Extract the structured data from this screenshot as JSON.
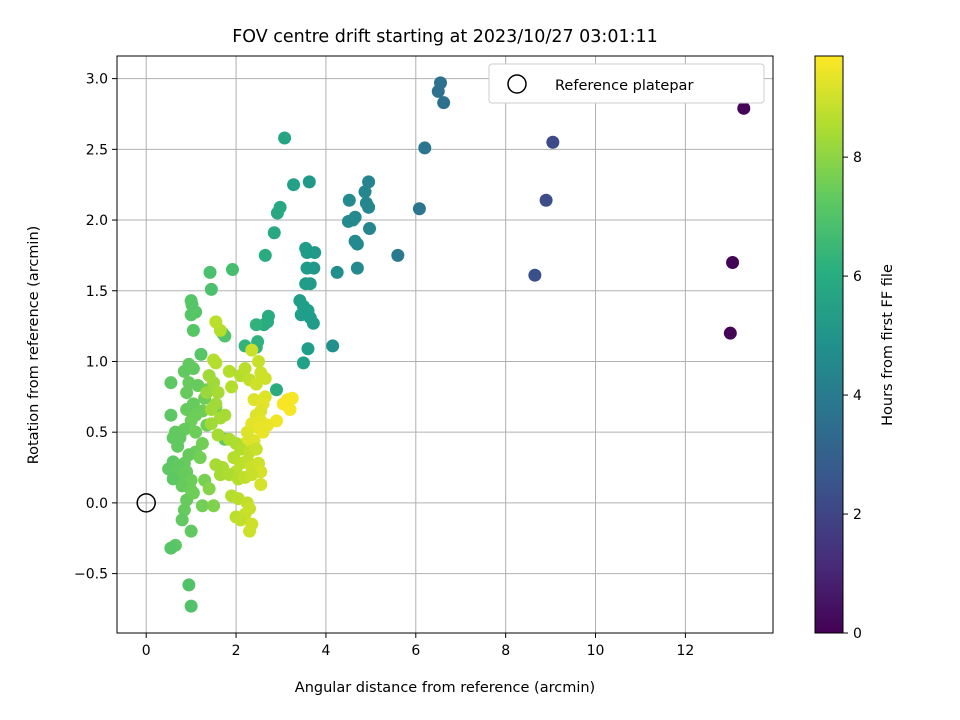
{
  "chart_data": {
    "type": "scatter",
    "title": "FOV centre drift starting at 2023/10/27 03:01:11",
    "xlabel": "Angular distance from reference (arcmin)",
    "ylabel": "Rotation from reference (arcmin)",
    "xlim": [
      -0.65,
      13.95
    ],
    "ylim": [
      -0.92,
      3.16
    ],
    "xticks": [
      0,
      2,
      4,
      6,
      8,
      10,
      12
    ],
    "yticks": [
      -0.5,
      0.0,
      0.5,
      1.0,
      1.5,
      2.0,
      2.5,
      3.0
    ],
    "xtick_labels": [
      "0",
      "2",
      "4",
      "6",
      "8",
      "10",
      "12"
    ],
    "ytick_labels": [
      "−0.5",
      "0.0",
      "0.5",
      "1.0",
      "1.5",
      "2.0",
      "2.5",
      "3.0"
    ],
    "grid": true,
    "legend": {
      "location": "upper right",
      "label": "Reference platepar"
    },
    "reference_point": {
      "x": 0,
      "y": 0
    },
    "colorbar": {
      "label": "Hours from first FF file",
      "range": [
        0,
        9.7
      ],
      "ticks": [
        0,
        2,
        4,
        6,
        8
      ],
      "tick_labels": [
        "0",
        "2",
        "4",
        "6",
        "8"
      ],
      "colormap": "viridis"
    },
    "points": [
      [
        13.3,
        2.79,
        0.1
      ],
      [
        13.05,
        1.7,
        0.1
      ],
      [
        13.0,
        1.2,
        0.1
      ],
      [
        8.65,
        1.61,
        2.4
      ],
      [
        8.9,
        2.14,
        2.3
      ],
      [
        9.05,
        2.55,
        2.2
      ],
      [
        6.55,
        2.97,
        3.6
      ],
      [
        6.5,
        2.91,
        3.6
      ],
      [
        6.62,
        2.83,
        3.6
      ],
      [
        6.2,
        2.51,
        3.8
      ],
      [
        6.08,
        2.08,
        3.8
      ],
      [
        5.6,
        1.75,
        4.0
      ],
      [
        4.95,
        2.27,
        4.4
      ],
      [
        4.87,
        2.2,
        4.5
      ],
      [
        4.9,
        2.12,
        4.5
      ],
      [
        4.95,
        2.09,
        4.5
      ],
      [
        4.52,
        2.14,
        4.6
      ],
      [
        4.6,
        2.0,
        4.6
      ],
      [
        4.65,
        2.02,
        4.6
      ],
      [
        4.5,
        1.99,
        4.6
      ],
      [
        4.97,
        1.94,
        4.5
      ],
      [
        4.65,
        1.85,
        4.6
      ],
      [
        4.7,
        1.83,
        4.6
      ],
      [
        4.7,
        1.66,
        4.6
      ],
      [
        4.25,
        1.63,
        4.8
      ],
      [
        4.15,
        1.11,
        4.9
      ],
      [
        3.63,
        2.27,
        5.2
      ],
      [
        3.28,
        2.25,
        5.5
      ],
      [
        3.08,
        2.58,
        5.7
      ],
      [
        2.98,
        2.09,
        5.8
      ],
      [
        2.92,
        2.05,
        5.8
      ],
      [
        2.85,
        1.91,
        5.8
      ],
      [
        3.55,
        1.8,
        5.3
      ],
      [
        3.58,
        1.77,
        5.3
      ],
      [
        3.75,
        1.77,
        5.2
      ],
      [
        3.58,
        1.66,
        5.3
      ],
      [
        3.73,
        1.66,
        5.2
      ],
      [
        3.55,
        1.55,
        5.3
      ],
      [
        3.65,
        1.55,
        5.3
      ],
      [
        3.42,
        1.43,
        5.4
      ],
      [
        3.5,
        1.39,
        5.4
      ],
      [
        3.6,
        1.36,
        5.4
      ],
      [
        3.45,
        1.33,
        5.4
      ],
      [
        3.65,
        1.31,
        5.4
      ],
      [
        3.72,
        1.27,
        5.3
      ],
      [
        3.6,
        1.09,
        5.4
      ],
      [
        3.5,
        0.99,
        5.5
      ],
      [
        2.65,
        1.75,
        6.0
      ],
      [
        2.72,
        1.32,
        6.0
      ],
      [
        2.7,
        1.28,
        6.0
      ],
      [
        2.62,
        1.26,
        6.0
      ],
      [
        2.45,
        1.26,
        6.2
      ],
      [
        2.48,
        1.14,
        6.2
      ],
      [
        2.2,
        1.11,
        6.3
      ],
      [
        2.45,
        1.1,
        6.2
      ],
      [
        2.9,
        0.8,
        6.0
      ],
      [
        1.92,
        1.65,
        6.8
      ],
      [
        1.42,
        1.63,
        6.9
      ],
      [
        1.45,
        1.51,
        6.9
      ],
      [
        1.0,
        1.43,
        7.1
      ],
      [
        1.02,
        1.4,
        7.1
      ],
      [
        1.1,
        1.35,
        7.1
      ],
      [
        1.0,
        1.33,
        7.1
      ],
      [
        1.05,
        1.22,
        7.1
      ],
      [
        1.7,
        1.2,
        7.0
      ],
      [
        1.75,
        1.18,
        7.0
      ],
      [
        1.22,
        1.05,
        7.1
      ],
      [
        0.95,
        0.98,
        7.3
      ],
      [
        1.05,
        0.95,
        7.3
      ],
      [
        0.85,
        0.93,
        7.3
      ],
      [
        0.55,
        0.85,
        7.2
      ],
      [
        0.95,
        0.85,
        7.4
      ],
      [
        1.15,
        0.83,
        7.4
      ],
      [
        1.35,
        0.8,
        7.5
      ],
      [
        0.9,
        0.78,
        7.4
      ],
      [
        1.3,
        0.74,
        7.5
      ],
      [
        1.05,
        0.7,
        7.4
      ],
      [
        1.55,
        0.68,
        7.5
      ],
      [
        0.9,
        0.66,
        7.4
      ],
      [
        1.25,
        0.65,
        7.5
      ],
      [
        1.1,
        0.62,
        7.5
      ],
      [
        0.55,
        0.62,
        7.2
      ],
      [
        1.0,
        0.58,
        7.5
      ],
      [
        1.35,
        0.55,
        7.6
      ],
      [
        0.85,
        0.52,
        7.4
      ],
      [
        0.65,
        0.5,
        7.3
      ],
      [
        1.1,
        0.5,
        7.5
      ],
      [
        0.6,
        0.46,
        7.3
      ],
      [
        0.75,
        0.46,
        7.3
      ],
      [
        1.75,
        0.45,
        7.2
      ],
      [
        0.7,
        0.4,
        7.3
      ],
      [
        1.25,
        0.42,
        7.6
      ],
      [
        1.1,
        0.36,
        7.5
      ],
      [
        0.95,
        0.34,
        7.4
      ],
      [
        1.2,
        0.32,
        7.6
      ],
      [
        0.6,
        0.29,
        7.2
      ],
      [
        0.85,
        0.28,
        7.4
      ],
      [
        0.72,
        0.26,
        7.3
      ],
      [
        0.5,
        0.24,
        7.2
      ],
      [
        0.65,
        0.22,
        7.3
      ],
      [
        0.9,
        0.22,
        7.4
      ],
      [
        0.8,
        0.18,
        7.4
      ],
      [
        0.6,
        0.17,
        7.2
      ],
      [
        1.0,
        0.16,
        7.5
      ],
      [
        1.3,
        0.16,
        7.7
      ],
      [
        0.8,
        0.12,
        7.4
      ],
      [
        1.0,
        0.09,
        7.5
      ],
      [
        1.4,
        0.1,
        7.9
      ],
      [
        0.9,
        0.02,
        7.4
      ],
      [
        1.05,
        0.07,
        7.5
      ],
      [
        1.25,
        -0.02,
        7.6
      ],
      [
        1.5,
        -0.02,
        7.8
      ],
      [
        0.85,
        -0.05,
        7.4
      ],
      [
        0.8,
        -0.12,
        7.3
      ],
      [
        1.0,
        -0.2,
        7.3
      ],
      [
        0.65,
        -0.3,
        7.2
      ],
      [
        0.55,
        -0.32,
        7.1
      ],
      [
        0.95,
        -0.58,
        7.0
      ],
      [
        1.0,
        -0.73,
        7.0
      ],
      [
        1.5,
        1.01,
        8.6
      ],
      [
        1.55,
        0.99,
        8.6
      ],
      [
        1.65,
        1.22,
        8.6
      ],
      [
        1.55,
        1.28,
        8.7
      ],
      [
        1.85,
        0.93,
        8.6
      ],
      [
        1.9,
        0.82,
        8.6
      ],
      [
        2.1,
        0.9,
        8.6
      ],
      [
        2.2,
        0.95,
        8.7
      ],
      [
        2.35,
        1.08,
        8.9
      ],
      [
        2.5,
        1.0,
        8.9
      ],
      [
        2.3,
        0.87,
        8.8
      ],
      [
        2.55,
        0.92,
        9.0
      ],
      [
        2.65,
        0.88,
        9.0
      ],
      [
        2.45,
        0.84,
        9.0
      ],
      [
        2.65,
        0.75,
        9.2
      ],
      [
        2.4,
        0.73,
        9.2
      ],
      [
        2.6,
        0.7,
        9.3
      ],
      [
        3.15,
        0.73,
        9.6
      ],
      [
        3.25,
        0.74,
        9.6
      ],
      [
        3.05,
        0.7,
        9.6
      ],
      [
        3.2,
        0.66,
        9.6
      ],
      [
        2.9,
        0.58,
        9.5
      ],
      [
        2.55,
        0.65,
        9.2
      ],
      [
        2.45,
        0.62,
        9.2
      ],
      [
        2.55,
        0.58,
        9.3
      ],
      [
        2.35,
        0.56,
        9.3
      ],
      [
        2.7,
        0.55,
        9.4
      ],
      [
        2.5,
        0.53,
        9.4
      ],
      [
        2.6,
        0.5,
        9.4
      ],
      [
        2.25,
        0.5,
        9.2
      ],
      [
        2.4,
        0.44,
        9.2
      ],
      [
        2.2,
        0.42,
        9.2
      ],
      [
        1.4,
        0.9,
        8.3
      ],
      [
        1.5,
        0.85,
        8.3
      ],
      [
        1.35,
        0.78,
        8.2
      ],
      [
        1.6,
        0.78,
        8.4
      ],
      [
        1.45,
        0.66,
        8.3
      ],
      [
        1.55,
        0.7,
        8.3
      ],
      [
        1.65,
        0.6,
        8.4
      ],
      [
        1.75,
        0.62,
        8.4
      ],
      [
        1.45,
        0.56,
        8.3
      ],
      [
        1.6,
        0.48,
        8.4
      ],
      [
        1.85,
        0.45,
        8.5
      ],
      [
        2.0,
        0.42,
        8.5
      ],
      [
        2.1,
        0.38,
        8.6
      ],
      [
        2.3,
        0.36,
        8.8
      ],
      [
        2.45,
        0.38,
        8.9
      ],
      [
        1.95,
        0.32,
        8.6
      ],
      [
        2.1,
        0.28,
        8.7
      ],
      [
        2.25,
        0.3,
        8.8
      ],
      [
        2.35,
        0.25,
        8.9
      ],
      [
        2.5,
        0.28,
        9.0
      ],
      [
        2.55,
        0.22,
        9.1
      ],
      [
        2.0,
        0.22,
        8.7
      ],
      [
        1.7,
        0.25,
        8.5
      ],
      [
        1.55,
        0.27,
        8.4
      ],
      [
        1.65,
        0.2,
        8.4
      ],
      [
        1.85,
        0.2,
        8.5
      ],
      [
        2.05,
        0.17,
        8.6
      ],
      [
        2.2,
        0.18,
        8.8
      ],
      [
        2.35,
        0.2,
        8.9
      ],
      [
        2.55,
        0.13,
        9.1
      ],
      [
        1.9,
        0.05,
        8.6
      ],
      [
        2.05,
        0.03,
        8.7
      ],
      [
        2.25,
        0.0,
        8.8
      ],
      [
        2.3,
        -0.04,
        8.9
      ],
      [
        2.2,
        -0.08,
        8.9
      ],
      [
        2.0,
        -0.1,
        8.7
      ],
      [
        2.1,
        -0.12,
        8.8
      ],
      [
        2.35,
        -0.15,
        9.0
      ],
      [
        2.3,
        -0.2,
        9.0
      ]
    ]
  }
}
